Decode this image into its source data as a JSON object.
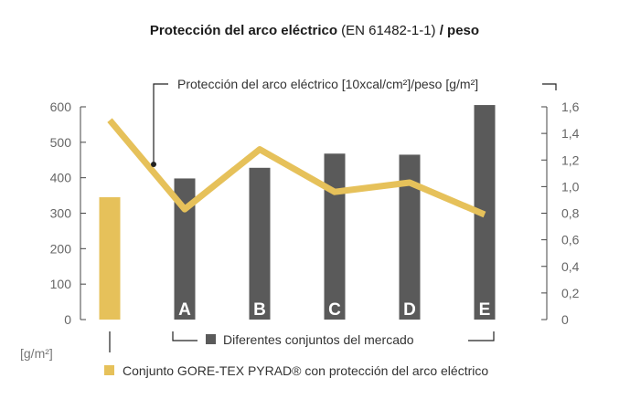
{
  "chart_data": {
    "type": "bar+line",
    "title_parts": [
      {
        "text": "Protección del arco eléctrico",
        "bold": true
      },
      {
        "text": " (EN 61482-1-1) ",
        "bold": false
      },
      {
        "text": "/ peso",
        "bold": true
      }
    ],
    "left_axis": {
      "unit": "[g/m²]",
      "ylim": [
        0,
        600
      ],
      "ticks": [
        "0",
        "100",
        "200",
        "300",
        "400",
        "500",
        "600"
      ]
    },
    "right_axis": {
      "ylim": [
        0,
        1.6
      ],
      "ticks": [
        "0",
        "0,2",
        "0,4",
        "0,6",
        "0,8",
        "1,0",
        "1,2",
        "1,4",
        "1,6"
      ]
    },
    "categories": [
      "",
      "A",
      "B",
      "C",
      "D",
      "E"
    ],
    "bar_series": {
      "name": "peso [g/m²]",
      "values": [
        345,
        398,
        428,
        468,
        465,
        605
      ],
      "colors": [
        "#e6c15a",
        "#5a5a5a",
        "#5a5a5a",
        "#5a5a5a",
        "#5a5a5a",
        "#5a5a5a"
      ]
    },
    "line_series": {
      "name": "Protección del arco eléctrico [10xcal/cm²]/peso [g/m²]",
      "axis": "right",
      "values": [
        1.5,
        0.83,
        1.28,
        0.96,
        1.03,
        0.79
      ],
      "color": "#e6c15a"
    },
    "line_annotation": "Protección del arco eléctrico [10xcal/cm²]/peso [g/m²]",
    "legend": [
      {
        "label": "Diferentes conjuntos del mercado",
        "color": "#5a5a5a"
      },
      {
        "label": "Conjunto GORE-TEX PYRAD® con protección del arco eléctrico",
        "color": "#e6c15a"
      }
    ]
  }
}
